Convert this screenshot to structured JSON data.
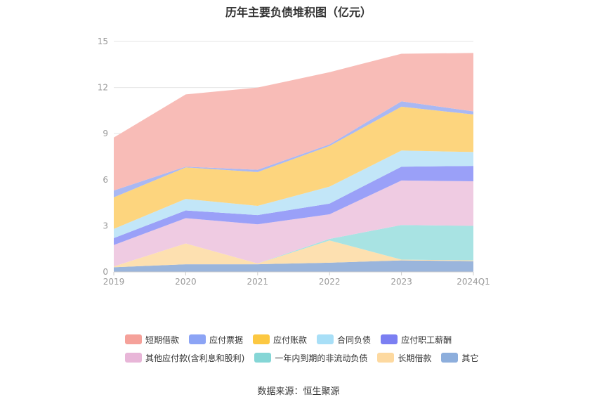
{
  "chart_data": {
    "type": "area",
    "title": "历年主要负债堆积图（亿元）",
    "categories": [
      "2019",
      "2020",
      "2021",
      "2022",
      "2023",
      "2024Q1"
    ],
    "ylim": [
      0,
      15
    ],
    "yticks": [
      0,
      3,
      6,
      9,
      12,
      15
    ],
    "stacked": true,
    "grid": true,
    "legend_position": "bottom",
    "series": [
      {
        "name": "其它",
        "color": "#9ab5dc",
        "values": [
          0.3,
          0.5,
          0.5,
          0.6,
          0.75,
          0.7
        ]
      },
      {
        "name": "长期借款",
        "color": "#fde0b0",
        "values": [
          0.05,
          1.35,
          0.05,
          1.45,
          0.05,
          0.05
        ]
      },
      {
        "name": "一年内到期的非流动负债",
        "color": "#a8e3e3",
        "values": [
          0.0,
          0.0,
          0.0,
          0.1,
          2.25,
          2.25
        ]
      },
      {
        "name": "其他应付款(含利息和股利)",
        "color": "#efcbe2",
        "values": [
          1.4,
          1.65,
          2.55,
          1.6,
          2.9,
          2.9
        ]
      },
      {
        "name": "应付职工薪酬",
        "color": "#9aa0f8",
        "values": [
          0.45,
          0.5,
          0.6,
          0.7,
          0.9,
          1.0
        ]
      },
      {
        "name": "合同负债",
        "color": "#c2e6f8",
        "values": [
          0.6,
          0.75,
          0.6,
          1.1,
          1.05,
          0.9
        ]
      },
      {
        "name": "应付账款",
        "color": "#fdd57e",
        "values": [
          2.05,
          2.05,
          2.2,
          2.65,
          2.85,
          2.45
        ]
      },
      {
        "name": "应付票据",
        "color": "#a9b8f3",
        "values": [
          0.45,
          0.05,
          0.15,
          0.1,
          0.35,
          0.2
        ]
      },
      {
        "name": "短期借款",
        "color": "#f8bcb7",
        "values": [
          3.45,
          4.7,
          5.35,
          4.7,
          3.1,
          3.8
        ]
      }
    ],
    "legend": [
      {
        "name": "短期借款",
        "color": "#f5a19a"
      },
      {
        "name": "应付票据",
        "color": "#8ca4f5"
      },
      {
        "name": "应付账款",
        "color": "#fcc842"
      },
      {
        "name": "合同负债",
        "color": "#a8dff7"
      },
      {
        "name": "应付职工薪酬",
        "color": "#7b7ff2"
      },
      {
        "name": "其他应付款(含利息和股利)",
        "color": "#e8b6d8"
      },
      {
        "name": "一年内到期的非流动负债",
        "color": "#85d6d6"
      },
      {
        "name": "长期借款",
        "color": "#fdd9a0"
      },
      {
        "name": "其它",
        "color": "#8daedc"
      }
    ]
  },
  "source": "数据来源：恒生聚源"
}
